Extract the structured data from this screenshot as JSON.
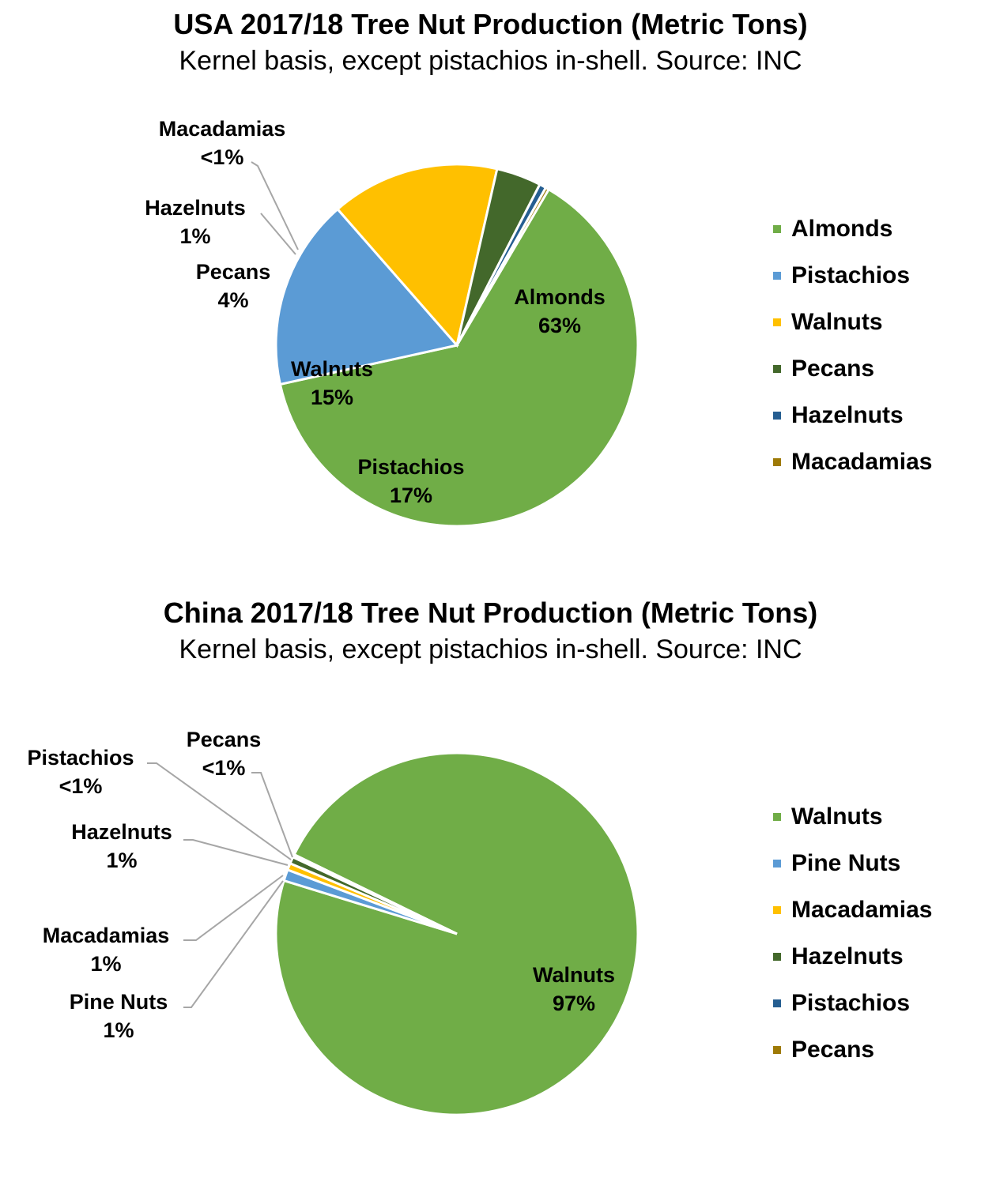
{
  "colors": {
    "green": "#70AD47",
    "blue": "#5B9BD5",
    "gold": "#FFC000",
    "darkgreen": "#43682B",
    "darkblue": "#255E91",
    "brown": "#9E7A07"
  },
  "chart_data": [
    {
      "type": "pie",
      "title": "USA 2017/18 Tree Nut Production (Metric Tons)",
      "subtitle": "Kernel basis, except pistachios in-shell. Source: INC",
      "legend_position": "right",
      "slices": [
        {
          "name": "Almonds",
          "value": 63,
          "label_name": "Almonds",
          "label_pct": "63%",
          "color": "#70AD47"
        },
        {
          "name": "Pistachios",
          "value": 17,
          "label_name": "Pistachios",
          "label_pct": "17%",
          "color": "#5B9BD5"
        },
        {
          "name": "Walnuts",
          "value": 15,
          "label_name": "Walnuts",
          "label_pct": "15%",
          "color": "#FFC000"
        },
        {
          "name": "Pecans",
          "value": 4,
          "label_name": "Pecans",
          "label_pct": "4%",
          "color": "#43682B"
        },
        {
          "name": "Hazelnuts",
          "value": 0.6,
          "label_name": "Hazelnuts",
          "label_pct": "1%",
          "color": "#255E91"
        },
        {
          "name": "Macadamias",
          "value": 0.3,
          "label_name": "Macadamias",
          "label_pct": "<1%",
          "color": "#9E7A07"
        }
      ],
      "legend": [
        "Almonds",
        "Pistachios",
        "Walnuts",
        "Pecans",
        "Hazelnuts",
        "Macadamias"
      ]
    },
    {
      "type": "pie",
      "title": "China 2017/18 Tree Nut Production (Metric Tons)",
      "subtitle": "Kernel basis, except pistachios in-shell. Source: INC",
      "legend_position": "right",
      "slices": [
        {
          "name": "Walnuts",
          "value": 97,
          "label_name": "Walnuts",
          "label_pct": "97%",
          "color": "#70AD47"
        },
        {
          "name": "Pine Nuts",
          "value": 1,
          "label_name": "Pine Nuts",
          "label_pct": "1%",
          "color": "#5B9BD5"
        },
        {
          "name": "Macadamias",
          "value": 0.6,
          "label_name": "Macadamias",
          "label_pct": "1%",
          "color": "#FFC000"
        },
        {
          "name": "Hazelnuts",
          "value": 0.6,
          "label_name": "Hazelnuts",
          "label_pct": "1%",
          "color": "#43682B"
        },
        {
          "name": "Pistachios",
          "value": 0.15,
          "label_name": "Pistachios",
          "label_pct": "<1%",
          "color": "#255E91"
        },
        {
          "name": "Pecans",
          "value": 0.1,
          "label_name": "Pecans",
          "label_pct": "<1%",
          "color": "#9E7A07"
        }
      ],
      "legend": [
        "Walnuts",
        "Pine Nuts",
        "Macadamias",
        "Hazelnuts",
        "Pistachios",
        "Pecans"
      ]
    }
  ]
}
